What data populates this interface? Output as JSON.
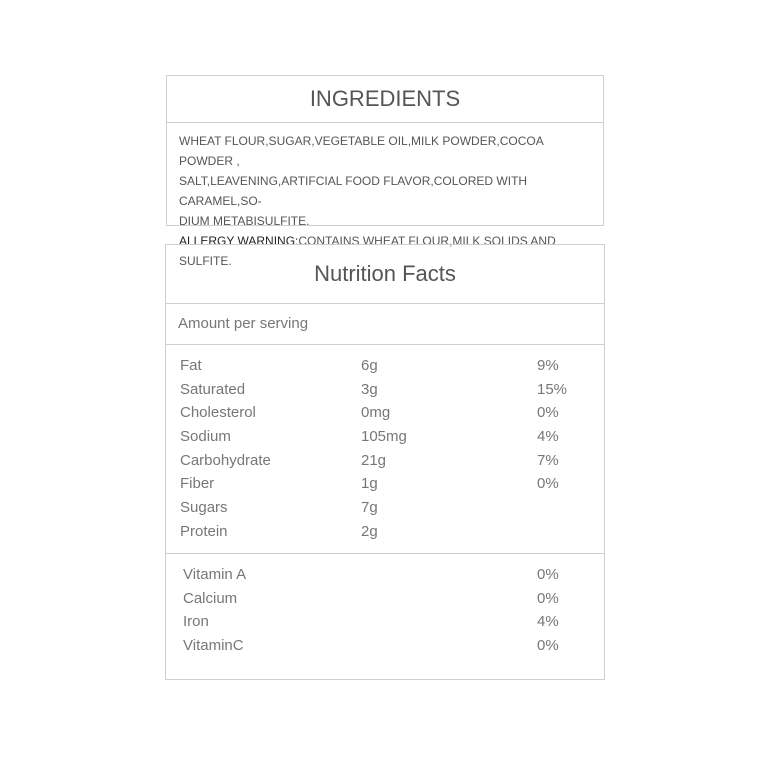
{
  "ingredients": {
    "title": "INGREDIENTS",
    "lines": [
      "WHEAT FLOUR,SUGAR,VEGETABLE OIL,MILK POWDER,COCOA POWDER ,",
      "SALT,LEAVENING,ARTIFCIAL FOOD FLAVOR,COLORED WITH CARAMEL,SO-",
      "DIUM METABISULFITE."
    ],
    "allergy_label": "ALLERGY WARNING:",
    "allergy_text": "CONTAINS WHEAT FLOUR,MILK SOLIDS AND SULFITE."
  },
  "nutrition": {
    "title": "Nutrition Facts",
    "amount_label": "Amount per serving",
    "nutrients": [
      {
        "name": "Fat",
        "amount": "6g",
        "dv": "9%"
      },
      {
        "name": "Saturated",
        "amount": "3g",
        "dv": "15%"
      },
      {
        "name": "Cholesterol",
        "amount": "0mg",
        "dv": "0%"
      },
      {
        "name": "Sodium",
        "amount": "105mg",
        "dv": "4%"
      },
      {
        "name": "Carbohydrate",
        "amount": "21g",
        "dv": "7%"
      },
      {
        "name": "Fiber",
        "amount": "1g",
        "dv": "0%"
      },
      {
        "name": "Sugars",
        "amount": "7g",
        "dv": ""
      },
      {
        "name": "Protein",
        "amount": "2g",
        "dv": ""
      }
    ],
    "vitamins": [
      {
        "name": "Vitamin A",
        "dv": "0%"
      },
      {
        "name": "Calcium",
        "dv": "0%"
      },
      {
        "name": "Iron",
        "dv": "4%"
      },
      {
        "name": "VitaminC",
        "dv": "0%"
      }
    ]
  }
}
